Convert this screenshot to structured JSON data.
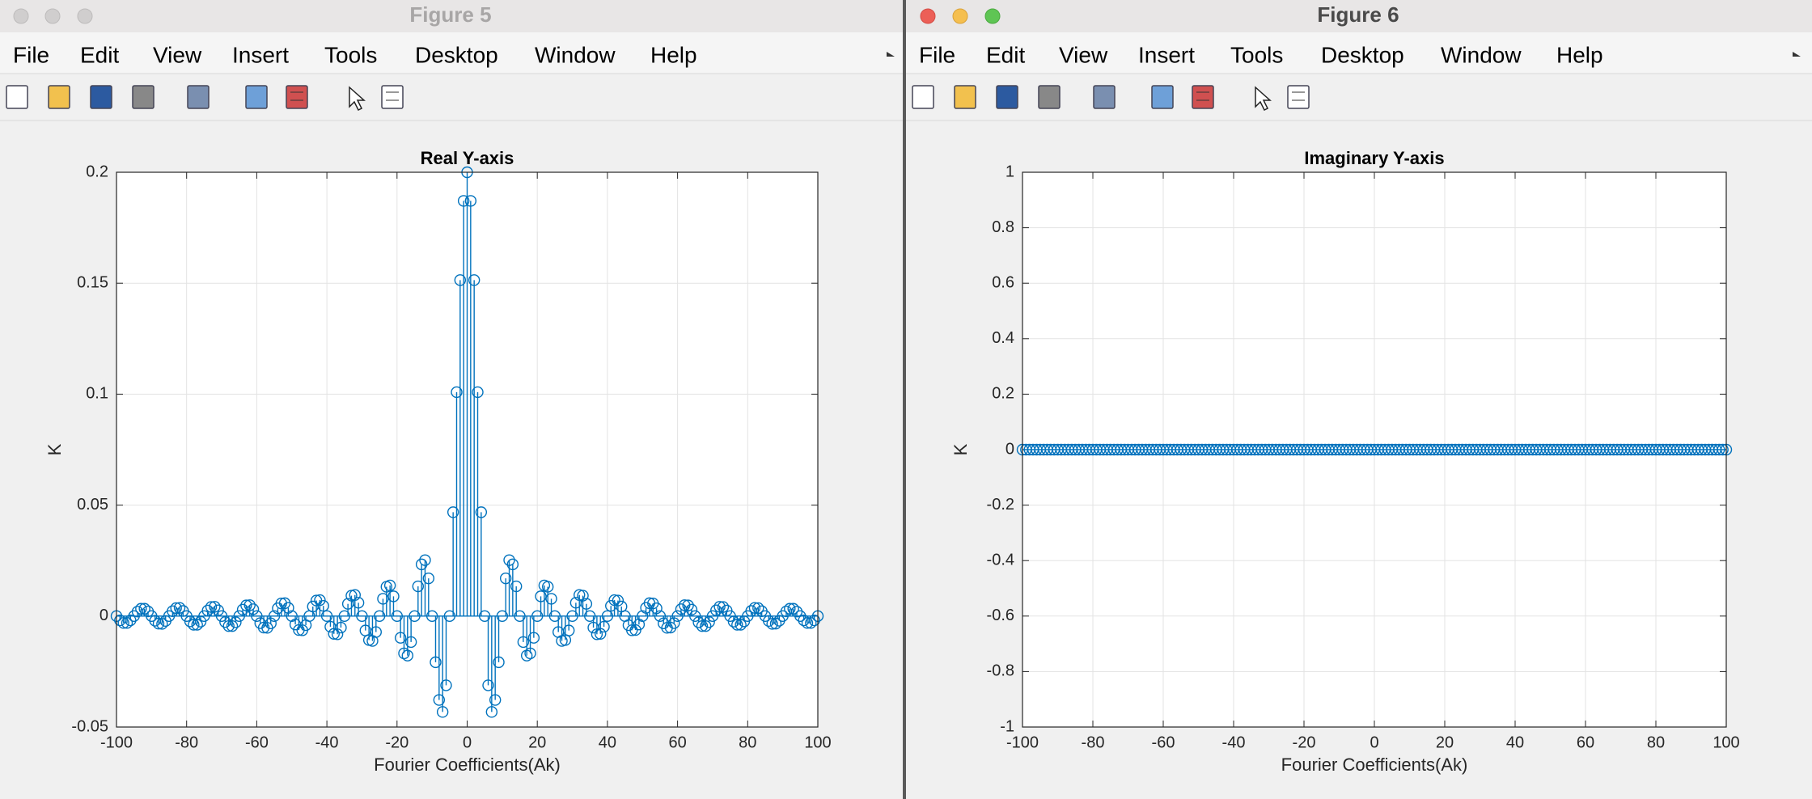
{
  "windows": [
    {
      "title": "Figure 5",
      "menu": [
        "File",
        "Edit",
        "View",
        "Insert",
        "Tools",
        "Desktop",
        "Window",
        "Help"
      ]
    },
    {
      "title": "Figure 6",
      "menu": [
        "File",
        "Edit",
        "View",
        "Insert",
        "Tools",
        "Desktop",
        "Window",
        "Help"
      ]
    }
  ],
  "chart_data": [
    {
      "type": "stem",
      "title": "Real Y-axis",
      "x_label": "Fourier Coefficients(Ak)",
      "y_label": "K",
      "color": "#0072bd",
      "grid": true,
      "xlim": [
        -100,
        100
      ],
      "xticks": [
        -100,
        -80,
        -60,
        -40,
        -20,
        0,
        20,
        40,
        60,
        80,
        100
      ],
      "ylim": [
        -0.05,
        0.2
      ],
      "yticks": [
        -0.05,
        0,
        0.05,
        0.1,
        0.15,
        0.2
      ],
      "x": [
        -100,
        -99,
        -98,
        -97,
        -96,
        -95,
        -94,
        -93,
        -92,
        -91,
        -90,
        -89,
        -88,
        -87,
        -86,
        -85,
        -84,
        -83,
        -82,
        -81,
        -80,
        -79,
        -78,
        -77,
        -76,
        -75,
        -74,
        -73,
        -72,
        -71,
        -70,
        -69,
        -68,
        -67,
        -66,
        -65,
        -64,
        -63,
        -62,
        -61,
        -60,
        -59,
        -58,
        -57,
        -56,
        -55,
        -54,
        -53,
        -52,
        -51,
        -50,
        -49,
        -48,
        -47,
        -46,
        -45,
        -44,
        -43,
        -42,
        -41,
        -40,
        -39,
        -38,
        -37,
        -36,
        -35,
        -34,
        -33,
        -32,
        -31,
        -30,
        -29,
        -28,
        -27,
        -26,
        -25,
        -24,
        -23,
        -22,
        -21,
        -20,
        -19,
        -18,
        -17,
        -16,
        -15,
        -14,
        -13,
        -12,
        -11,
        -10,
        -9,
        -8,
        -7,
        -6,
        -5,
        -4,
        -3,
        -2,
        -1,
        0,
        1,
        2,
        3,
        4,
        5,
        6,
        7,
        8,
        9,
        10,
        11,
        12,
        13,
        14,
        15,
        16,
        17,
        18,
        19,
        20,
        21,
        22,
        23,
        24,
        25,
        26,
        27,
        28,
        29,
        30,
        31,
        32,
        33,
        34,
        35,
        36,
        37,
        38,
        39,
        40,
        41,
        42,
        43,
        44,
        45,
        46,
        47,
        48,
        49,
        50,
        51,
        52,
        53,
        54,
        55,
        56,
        57,
        58,
        59,
        60,
        61,
        62,
        63,
        64,
        65,
        66,
        67,
        68,
        69,
        70,
        71,
        72,
        73,
        74,
        75,
        76,
        77,
        78,
        79,
        80,
        81,
        82,
        83,
        84,
        85,
        86,
        87,
        88,
        89,
        90,
        91,
        92,
        93,
        94,
        95,
        96,
        97,
        98,
        99,
        100
      ],
      "values": [
        0,
        -0.0019,
        -0.0031,
        -0.0031,
        -0.0019,
        0,
        0.002,
        0.0033,
        0.0033,
        0.0021,
        0,
        -0.0021,
        -0.0034,
        -0.0035,
        -0.0022,
        0,
        0.0022,
        0.0036,
        0.0037,
        0.0023,
        0,
        -0.0024,
        -0.0039,
        -0.0039,
        -0.0025,
        0,
        0.0025,
        0.0041,
        0.0042,
        0.0026,
        0,
        -0.0027,
        -0.0045,
        -0.0045,
        -0.0028,
        0,
        0.0029,
        0.0048,
        0.0049,
        0.0031,
        0,
        -0.0032,
        -0.0052,
        -0.0053,
        -0.0033,
        0,
        0.0035,
        0.0057,
        0.0058,
        0.0037,
        0,
        -0.0038,
        -0.0063,
        -0.0064,
        -0.0041,
        0,
        0.0043,
        0.007,
        0.0072,
        0.0046,
        0,
        -0.0048,
        -0.008,
        -0.0082,
        -0.0052,
        0,
        0.0055,
        0.0092,
        0.0095,
        0.006,
        0,
        -0.0065,
        -0.0108,
        -0.0112,
        -0.0072,
        0,
        0.0078,
        0.0132,
        0.0138,
        0.0089,
        0,
        -0.0098,
        -0.0168,
        -0.0178,
        -0.0117,
        0,
        0.0134,
        0.0233,
        0.0252,
        0.017,
        0,
        -0.0208,
        -0.0378,
        -0.0432,
        -0.0312,
        0,
        0.0468,
        0.1009,
        0.1514,
        0.1871,
        0.2,
        0.1871,
        0.1514,
        0.1009,
        0.0468,
        0,
        -0.0312,
        -0.0432,
        -0.0378,
        -0.0208,
        0,
        0.017,
        0.0252,
        0.0233,
        0.0134,
        0,
        -0.0117,
        -0.0178,
        -0.0168,
        -0.0098,
        0,
        0.0089,
        0.0138,
        0.0132,
        0.0078,
        0,
        -0.0072,
        -0.0112,
        -0.0108,
        -0.0065,
        0,
        0.006,
        0.0095,
        0.0092,
        0.0055,
        0,
        -0.0052,
        -0.0082,
        -0.008,
        -0.0048,
        0,
        0.0046,
        0.0072,
        0.007,
        0.0043,
        0,
        -0.0041,
        -0.0064,
        -0.0063,
        -0.0038,
        0,
        0.0037,
        0.0058,
        0.0057,
        0.0035,
        0,
        -0.0033,
        -0.0053,
        -0.0052,
        -0.0032,
        0,
        0.0031,
        0.0049,
        0.0048,
        0.0029,
        0,
        -0.0028,
        -0.0045,
        -0.0045,
        -0.0027,
        0,
        0.0026,
        0.0042,
        0.0041,
        0.0025,
        0,
        -0.0025,
        -0.0039,
        -0.0039,
        -0.0024,
        0,
        0.0023,
        0.0037,
        0.0036,
        0.0022,
        0,
        -0.0022,
        -0.0035,
        -0.0034,
        -0.0021,
        0,
        0.0021,
        0.0033,
        0.0033,
        0.002,
        0,
        -0.0019,
        -0.0031,
        -0.0031,
        -0.0019,
        0
      ]
    },
    {
      "type": "stem",
      "title": "Imaginary Y-axis",
      "x_label": "Fourier Coefficients(Ak)",
      "y_label": "K",
      "color": "#0072bd",
      "grid": true,
      "xlim": [
        -100,
        100
      ],
      "xticks": [
        -100,
        -80,
        -60,
        -40,
        -20,
        0,
        20,
        40,
        60,
        80,
        100
      ],
      "ylim": [
        -1,
        1
      ],
      "yticks": [
        -1,
        -0.8,
        -0.6,
        -0.4,
        -0.2,
        0,
        0.2,
        0.4,
        0.6,
        0.8,
        1
      ],
      "x": [
        -100,
        -99,
        -98,
        -97,
        -96,
        -95,
        -94,
        -93,
        -92,
        -91,
        -90,
        -89,
        -88,
        -87,
        -86,
        -85,
        -84,
        -83,
        -82,
        -81,
        -80,
        -79,
        -78,
        -77,
        -76,
        -75,
        -74,
        -73,
        -72,
        -71,
        -70,
        -69,
        -68,
        -67,
        -66,
        -65,
        -64,
        -63,
        -62,
        -61,
        -60,
        -59,
        -58,
        -57,
        -56,
        -55,
        -54,
        -53,
        -52,
        -51,
        -50,
        -49,
        -48,
        -47,
        -46,
        -45,
        -44,
        -43,
        -42,
        -41,
        -40,
        -39,
        -38,
        -37,
        -36,
        -35,
        -34,
        -33,
        -32,
        -31,
        -30,
        -29,
        -28,
        -27,
        -26,
        -25,
        -24,
        -23,
        -22,
        -21,
        -20,
        -19,
        -18,
        -17,
        -16,
        -15,
        -14,
        -13,
        -12,
        -11,
        -10,
        -9,
        -8,
        -7,
        -6,
        -5,
        -4,
        -3,
        -2,
        -1,
        0,
        1,
        2,
        3,
        4,
        5,
        6,
        7,
        8,
        9,
        10,
        11,
        12,
        13,
        14,
        15,
        16,
        17,
        18,
        19,
        20,
        21,
        22,
        23,
        24,
        25,
        26,
        27,
        28,
        29,
        30,
        31,
        32,
        33,
        34,
        35,
        36,
        37,
        38,
        39,
        40,
        41,
        42,
        43,
        44,
        45,
        46,
        47,
        48,
        49,
        50,
        51,
        52,
        53,
        54,
        55,
        56,
        57,
        58,
        59,
        60,
        61,
        62,
        63,
        64,
        65,
        66,
        67,
        68,
        69,
        70,
        71,
        72,
        73,
        74,
        75,
        76,
        77,
        78,
        79,
        80,
        81,
        82,
        83,
        84,
        85,
        86,
        87,
        88,
        89,
        90,
        91,
        92,
        93,
        94,
        95,
        96,
        97,
        98,
        99,
        100
      ],
      "values": [
        0,
        0,
        0,
        0,
        0,
        0,
        0,
        0,
        0,
        0,
        0,
        0,
        0,
        0,
        0,
        0,
        0,
        0,
        0,
        0,
        0,
        0,
        0,
        0,
        0,
        0,
        0,
        0,
        0,
        0,
        0,
        0,
        0,
        0,
        0,
        0,
        0,
        0,
        0,
        0,
        0,
        0,
        0,
        0,
        0,
        0,
        0,
        0,
        0,
        0,
        0,
        0,
        0,
        0,
        0,
        0,
        0,
        0,
        0,
        0,
        0,
        0,
        0,
        0,
        0,
        0,
        0,
        0,
        0,
        0,
        0,
        0,
        0,
        0,
        0,
        0,
        0,
        0,
        0,
        0,
        0,
        0,
        0,
        0,
        0,
        0,
        0,
        0,
        0,
        0,
        0,
        0,
        0,
        0,
        0,
        0,
        0,
        0,
        0,
        0,
        0,
        0,
        0,
        0,
        0,
        0,
        0,
        0,
        0,
        0,
        0,
        0,
        0,
        0,
        0,
        0,
        0,
        0,
        0,
        0,
        0,
        0,
        0,
        0,
        0,
        0,
        0,
        0,
        0,
        0,
        0,
        0,
        0,
        0,
        0,
        0,
        0,
        0,
        0,
        0,
        0,
        0,
        0,
        0,
        0,
        0,
        0,
        0,
        0,
        0,
        0,
        0,
        0,
        0,
        0,
        0,
        0,
        0,
        0,
        0,
        0,
        0,
        0,
        0,
        0,
        0,
        0,
        0,
        0,
        0,
        0,
        0,
        0,
        0,
        0,
        0,
        0,
        0,
        0,
        0,
        0,
        0,
        0,
        0,
        0,
        0,
        0,
        0,
        0,
        0,
        0,
        0,
        0,
        0,
        0,
        0,
        0,
        0,
        0,
        0,
        0
      ]
    }
  ]
}
